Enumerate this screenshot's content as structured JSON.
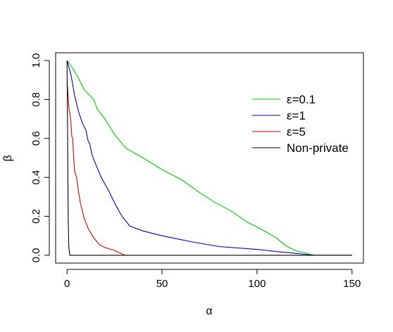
{
  "chart_data": {
    "type": "line",
    "title": "",
    "xlabel": "α",
    "ylabel": "β",
    "xlim": [
      -6,
      156
    ],
    "ylim": [
      -0.04,
      1.04
    ],
    "x_ticks": [
      0,
      50,
      100,
      150
    ],
    "y_ticks": [
      0.0,
      0.2,
      0.4,
      0.6,
      0.8,
      1.0
    ],
    "x_tick_labels": [
      "0",
      "50",
      "100",
      "150"
    ],
    "y_tick_labels": [
      "0.0",
      "0.2",
      "0.4",
      "0.6",
      "0.8",
      "1.0"
    ],
    "grid": false,
    "legend_position": "top-right",
    "series": [
      {
        "name": "ε=0.1",
        "color": "#00cc00",
        "points": [
          [
            0,
            1.0
          ],
          [
            3,
            0.96
          ],
          [
            6,
            0.91
          ],
          [
            9,
            0.85
          ],
          [
            12,
            0.82
          ],
          [
            14,
            0.8
          ],
          [
            16,
            0.75
          ],
          [
            20,
            0.7
          ],
          [
            25,
            0.62
          ],
          [
            31,
            0.55
          ],
          [
            40,
            0.5
          ],
          [
            50,
            0.44
          ],
          [
            60,
            0.39
          ],
          [
            70,
            0.32
          ],
          [
            78,
            0.27
          ],
          [
            86,
            0.23
          ],
          [
            95,
            0.17
          ],
          [
            103,
            0.13
          ],
          [
            110,
            0.09
          ],
          [
            115,
            0.05
          ],
          [
            120,
            0.025
          ],
          [
            130,
            0.0
          ],
          [
            150,
            0.0
          ]
        ]
      },
      {
        "name": "ε=1",
        "color": "#0000cc",
        "points": [
          [
            0,
            1.0
          ],
          [
            2,
            0.93
          ],
          [
            4,
            0.82
          ],
          [
            6,
            0.74
          ],
          [
            8,
            0.68
          ],
          [
            10,
            0.64
          ],
          [
            11,
            0.59
          ],
          [
            12,
            0.57
          ],
          [
            13,
            0.52
          ],
          [
            15,
            0.47
          ],
          [
            18,
            0.4
          ],
          [
            22,
            0.33
          ],
          [
            26,
            0.25
          ],
          [
            29,
            0.2
          ],
          [
            33,
            0.15
          ],
          [
            40,
            0.125
          ],
          [
            50,
            0.1
          ],
          [
            65,
            0.07
          ],
          [
            80,
            0.045
          ],
          [
            100,
            0.03
          ],
          [
            115,
            0.015
          ],
          [
            125,
            0.005
          ],
          [
            130,
            0.0
          ],
          [
            150,
            0.0
          ]
        ]
      },
      {
        "name": "ε=5",
        "color": "#dd0000",
        "points": [
          [
            0,
            0.89
          ],
          [
            0.5,
            0.83
          ],
          [
            1,
            0.75
          ],
          [
            1.5,
            0.73
          ],
          [
            2,
            0.69
          ],
          [
            2.5,
            0.61
          ],
          [
            3,
            0.6
          ],
          [
            3.5,
            0.5
          ],
          [
            4,
            0.43
          ],
          [
            5,
            0.4
          ],
          [
            6,
            0.33
          ],
          [
            7,
            0.27
          ],
          [
            8,
            0.23
          ],
          [
            9,
            0.19
          ],
          [
            11,
            0.14
          ],
          [
            14,
            0.09
          ],
          [
            17,
            0.055
          ],
          [
            20,
            0.04
          ],
          [
            25,
            0.025
          ],
          [
            30,
            0.002
          ],
          [
            31,
            0.0
          ]
        ]
      },
      {
        "name": "Non-private",
        "color": "#000000",
        "points": [
          [
            0,
            1.0
          ],
          [
            0.3,
            0.6
          ],
          [
            0.6,
            0.2
          ],
          [
            0.9,
            0.05
          ],
          [
            1.2,
            0.02
          ],
          [
            1.5,
            0.0
          ],
          [
            150,
            0.0
          ]
        ]
      }
    ]
  }
}
